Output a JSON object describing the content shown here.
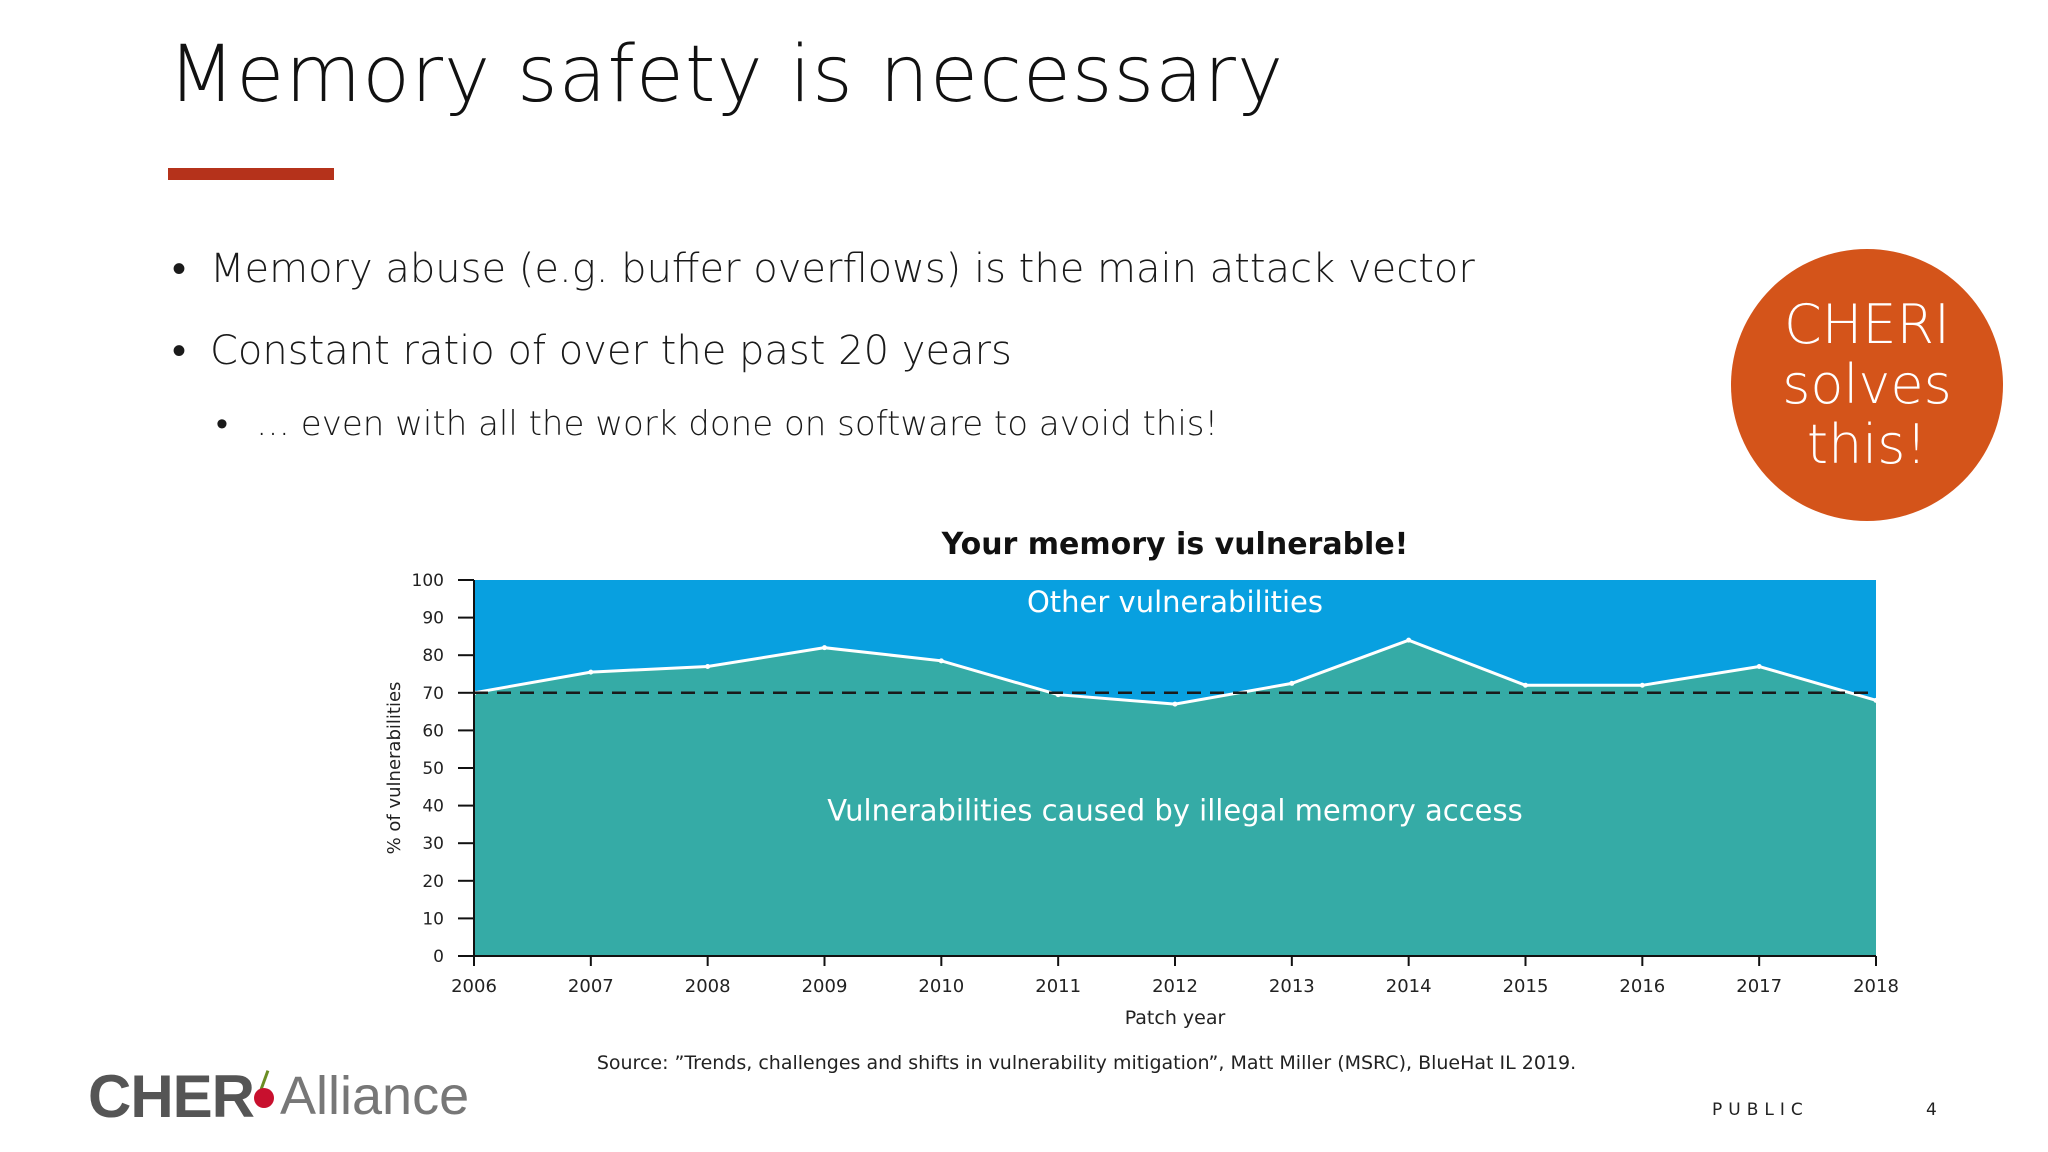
{
  "slide": {
    "title": "Memory safety is necessary",
    "bullets": [
      "Memory abuse (e.g. buffer overflows) is the main attack vector",
      "Constant ratio of over the past 20 years"
    ],
    "sub_bullet": "… even with all the work done on software to avoid this!",
    "bullet_glyph": "•",
    "badge_lines": [
      "CHERI",
      "solves",
      "this!"
    ],
    "source": "Source: ”Trends, challenges and shifts in vulnerability mitigation”, Matt Miller (MSRC), BlueHat IL 2019.",
    "logo": {
      "part1": "CHER",
      "part2": "Alliance"
    },
    "classification": "PUBLIC",
    "page_number": "4"
  },
  "colors": {
    "accent": "#b5321b",
    "badge": "#d4541a",
    "other_area": "#08a0e0",
    "memory_area": "#35aba6",
    "line": "#ffffff",
    "reference": "#1a1a1a"
  },
  "chart_data": {
    "type": "area",
    "title": "Your memory is vulnerable!",
    "xlabel": "Patch year",
    "ylabel": "% of vulnerabilities",
    "x": [
      2006,
      2007,
      2008,
      2009,
      2010,
      2011,
      2012,
      2013,
      2014,
      2015,
      2016,
      2017,
      2018
    ],
    "xlim": [
      2006,
      2018
    ],
    "ylim": [
      0,
      100
    ],
    "yticks": [
      0,
      10,
      20,
      30,
      40,
      50,
      60,
      70,
      80,
      90,
      100
    ],
    "series": [
      {
        "name": "Vulnerabilities caused by illegal memory access",
        "values": [
          70,
          75.5,
          77,
          82,
          78.5,
          69.5,
          67,
          72.5,
          84,
          72,
          72,
          77,
          68
        ]
      }
    ],
    "top_region_label": "Other vulnerabilities",
    "reference_line": 70,
    "grid": false
  }
}
